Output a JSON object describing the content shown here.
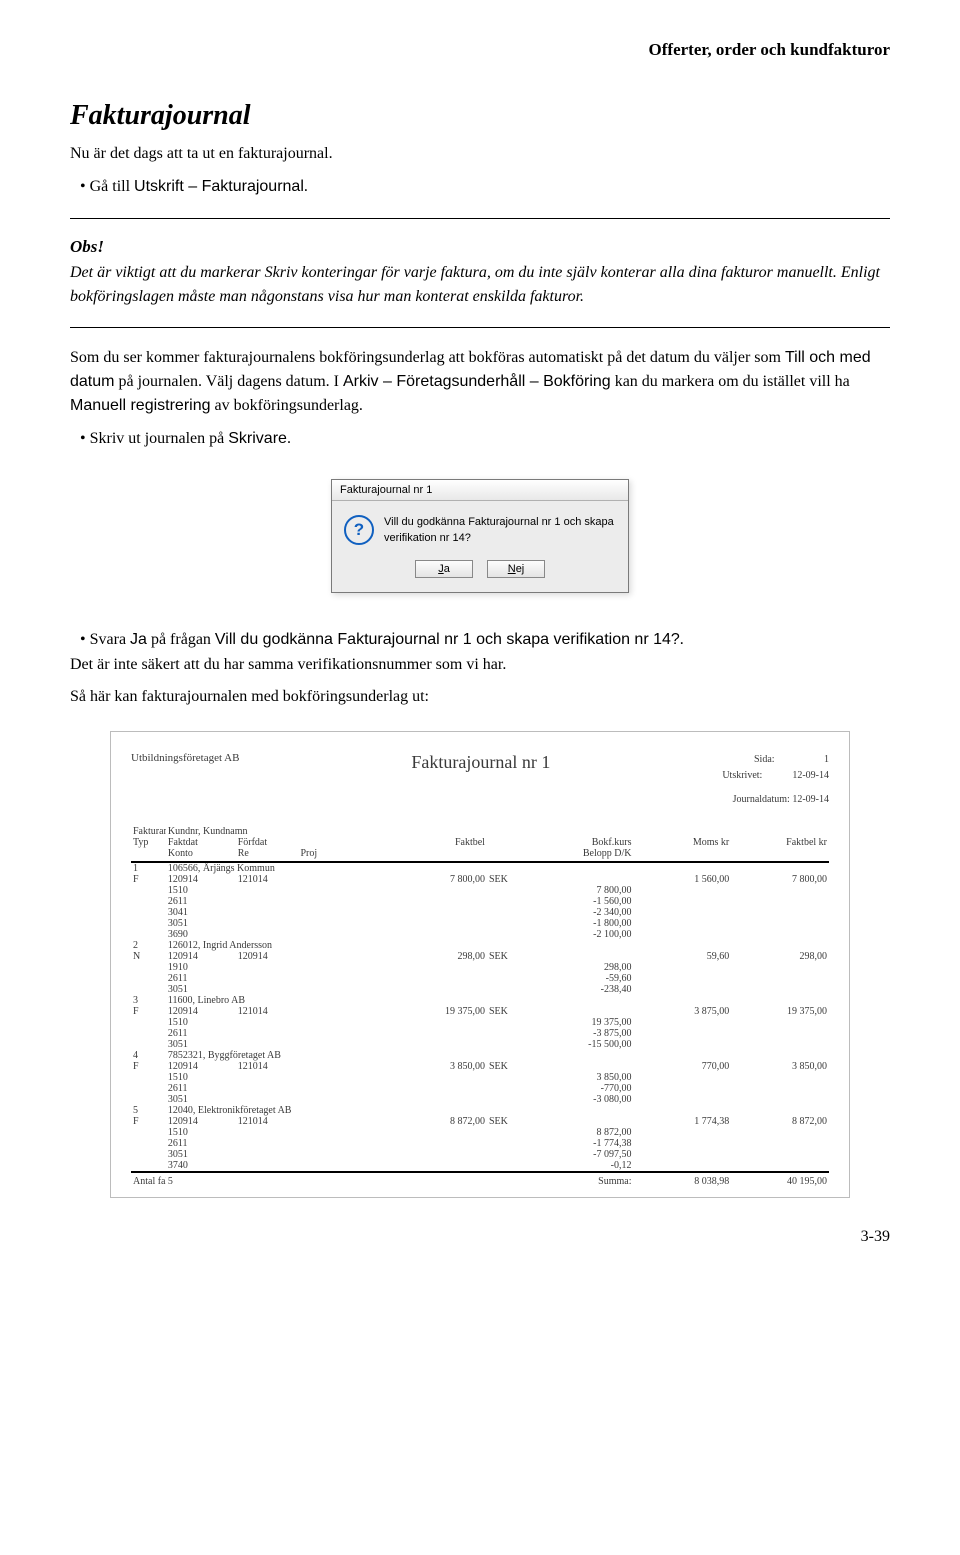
{
  "breadcrumb": "Offerter, order och kundfakturor",
  "heading": "Fakturajournal",
  "intro": "Nu är det dags att ta ut en fakturajournal.",
  "bullet1_pre": "Gå till ",
  "bullet1_sans": "Utskrift – Fakturajournal",
  "bullet1_post": ".",
  "obs_label": "Obs!",
  "obs_text": "Det är viktigt att du markerar Skriv konteringar för varje faktura, om du inte själv konterar alla dina fakturor manuellt. Enligt bokföringslagen måste man någonstans visa hur man konterat enskilda fakturor.",
  "para2_a": "Som du ser kommer fakturajournalens bokföringsunderlag att bokföras automatiskt på det datum du väljer som ",
  "para2_sans1": "Till och med datum",
  "para2_b": " på journalen. Välj dagens datum. I ",
  "para2_sans2": "Arkiv – Företagsunderhåll – Bokföring",
  "para2_c": " kan du markera om du istället vill ha ",
  "para2_sans3": "Manuell registrering",
  "para2_d": " av bokföringsunderlag.",
  "bullet2_pre": "Skriv ut journalen på ",
  "bullet2_sans": "Skrivare",
  "bullet2_post": ".",
  "dialog": {
    "title": "Fakturajournal nr 1",
    "msg": "Vill du godkänna Fakturajournal nr 1 och skapa verifikation nr 14?",
    "ja": "Ja",
    "nej": "Nej"
  },
  "bullet3_pre": "Svara ",
  "bullet3_sans1": "Ja",
  "bullet3_mid": " på frågan ",
  "bullet3_sans2": "Vill du godkänna Fakturajournal nr 1 och skapa verifikation nr 14?",
  "bullet3_post": ".",
  "para3": "Det är inte säkert att du har samma verifikationsnummer som vi har.",
  "para4": "Så här kan fakturajournalen med bokföringsunderlag ut:",
  "report": {
    "company": "Utbildningsföretaget AB",
    "title": "Fakturajournal nr 1",
    "sida_lbl": "Sida:",
    "sida_val": "1",
    "utskr_lbl": "Utskrivet:",
    "utskr_val": "12-09-14",
    "jdat_lbl": "Journaldatum:",
    "jdat_val": "12-09-14",
    "h_faktnr": "Fakturanr",
    "h_kundnr": "Kundnr, Kundnamn",
    "h_typ": "Typ",
    "h_konto": "Konto",
    "h_faktdat": "Faktdat",
    "h_re": "Re",
    "h_forf": "Förfdat",
    "h_proj": "Proj",
    "h_faktbel": "Faktbel",
    "h_bokfkurs": "Bokf.kurs",
    "h_belopp": "Belopp D/K",
    "h_moms": "Moms kr",
    "h_faktbelkr": "Faktbel kr",
    "rows": [
      {
        "nr": "1",
        "kund": "106566, Årjängs Kommun",
        "typ": "F",
        "faktdat": "120914",
        "forf": "121014",
        "faktbel": "7 800,00",
        "bk": "SEK",
        "moms": "1 560,00",
        "fbelkr": "7 800,00",
        "lines": [
          [
            "1510",
            "7 800,00"
          ],
          [
            "2611",
            "-1 560,00"
          ],
          [
            "3041",
            "-2 340,00"
          ],
          [
            "3051",
            "-1 800,00"
          ],
          [
            "3690",
            "-2 100,00"
          ]
        ]
      },
      {
        "nr": "2",
        "kund": "126012, Ingrid Andersson",
        "typ": "N",
        "faktdat": "120914",
        "forf": "120914",
        "faktbel": "298,00",
        "bk": "SEK",
        "moms": "59,60",
        "fbelkr": "298,00",
        "lines": [
          [
            "1910",
            "298,00"
          ],
          [
            "2611",
            "-59,60"
          ],
          [
            "3051",
            "-238,40"
          ]
        ]
      },
      {
        "nr": "3",
        "kund": "11600, Linebro AB",
        "typ": "F",
        "faktdat": "120914",
        "forf": "121014",
        "faktbel": "19 375,00",
        "bk": "SEK",
        "moms": "3 875,00",
        "fbelkr": "19 375,00",
        "lines": [
          [
            "1510",
            "19 375,00"
          ],
          [
            "2611",
            "-3 875,00"
          ],
          [
            "3051",
            "-15 500,00"
          ]
        ]
      },
      {
        "nr": "4",
        "kund": "7852321, Byggföretaget AB",
        "typ": "F",
        "faktdat": "120914",
        "forf": "121014",
        "faktbel": "3 850,00",
        "bk": "SEK",
        "moms": "770,00",
        "fbelkr": "3 850,00",
        "lines": [
          [
            "1510",
            "3 850,00"
          ],
          [
            "2611",
            "-770,00"
          ],
          [
            "3051",
            "-3 080,00"
          ]
        ]
      },
      {
        "nr": "5",
        "kund": "12040, Elektronikföretaget AB",
        "typ": "F",
        "faktdat": "120914",
        "forf": "121014",
        "faktbel": "8 872,00",
        "bk": "SEK",
        "moms": "1 774,38",
        "fbelkr": "8 872,00",
        "lines": [
          [
            "1510",
            "8 872,00"
          ],
          [
            "2611",
            "-1 774,38"
          ],
          [
            "3051",
            "-7 097,50"
          ],
          [
            "3740",
            "-0,12"
          ]
        ]
      }
    ],
    "foot_antal_lbl": "Antal fakturor:",
    "foot_antal_val": "5",
    "foot_summa_lbl": "Summa:",
    "foot_moms": "8 038,98",
    "foot_fbelkr": "40 195,00"
  },
  "page_num": "3-39"
}
